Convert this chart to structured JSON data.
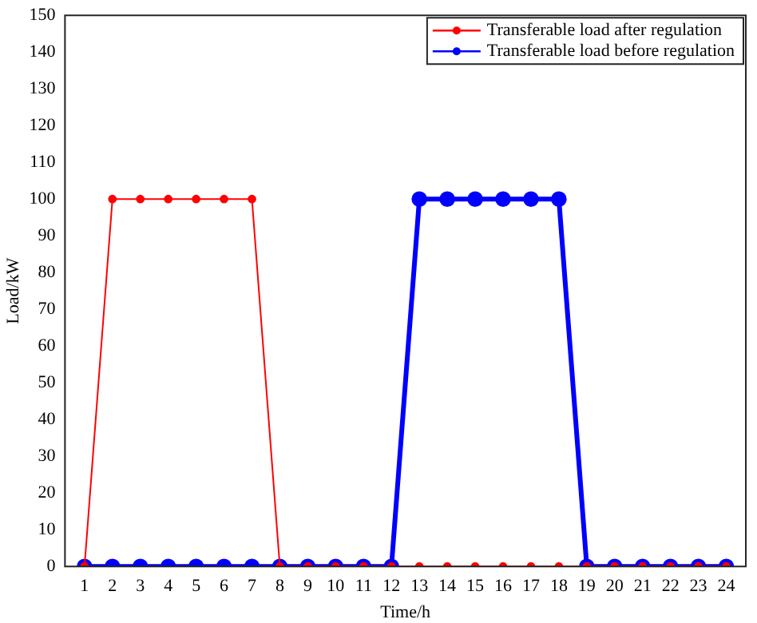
{
  "chart_data": {
    "type": "line",
    "xlabel": "Time/h",
    "ylabel": "Load/kW",
    "x": [
      1,
      2,
      3,
      4,
      5,
      6,
      7,
      8,
      9,
      10,
      11,
      12,
      13,
      14,
      15,
      16,
      17,
      18,
      19,
      20,
      21,
      22,
      23,
      24
    ],
    "series": [
      {
        "name": "Transferable load after regulation",
        "color": "#ff0000",
        "values": [
          0,
          100,
          100,
          100,
          100,
          100,
          100,
          0,
          0,
          0,
          0,
          0,
          0,
          0,
          0,
          0,
          0,
          0,
          0,
          0,
          0,
          0,
          0,
          0
        ]
      },
      {
        "name": "Transferable load before regulation",
        "color": "#0000ff",
        "values": [
          0,
          0,
          0,
          0,
          0,
          0,
          0,
          0,
          0,
          0,
          0,
          0,
          100,
          100,
          100,
          100,
          100,
          100,
          0,
          0,
          0,
          0,
          0,
          0
        ]
      }
    ],
    "xlim": [
      0.3,
      24.7
    ],
    "xticks": [
      1,
      2,
      3,
      4,
      5,
      6,
      7,
      8,
      9,
      10,
      11,
      12,
      13,
      14,
      15,
      16,
      17,
      18,
      19,
      20,
      21,
      22,
      23,
      24
    ],
    "ylim": [
      0,
      150
    ],
    "yticks": [
      0,
      10,
      20,
      30,
      40,
      50,
      60,
      70,
      80,
      90,
      100,
      110,
      120,
      130,
      140,
      150
    ],
    "grid": false,
    "legend": "top right",
    "marker": "circle",
    "line_style": "solid"
  }
}
